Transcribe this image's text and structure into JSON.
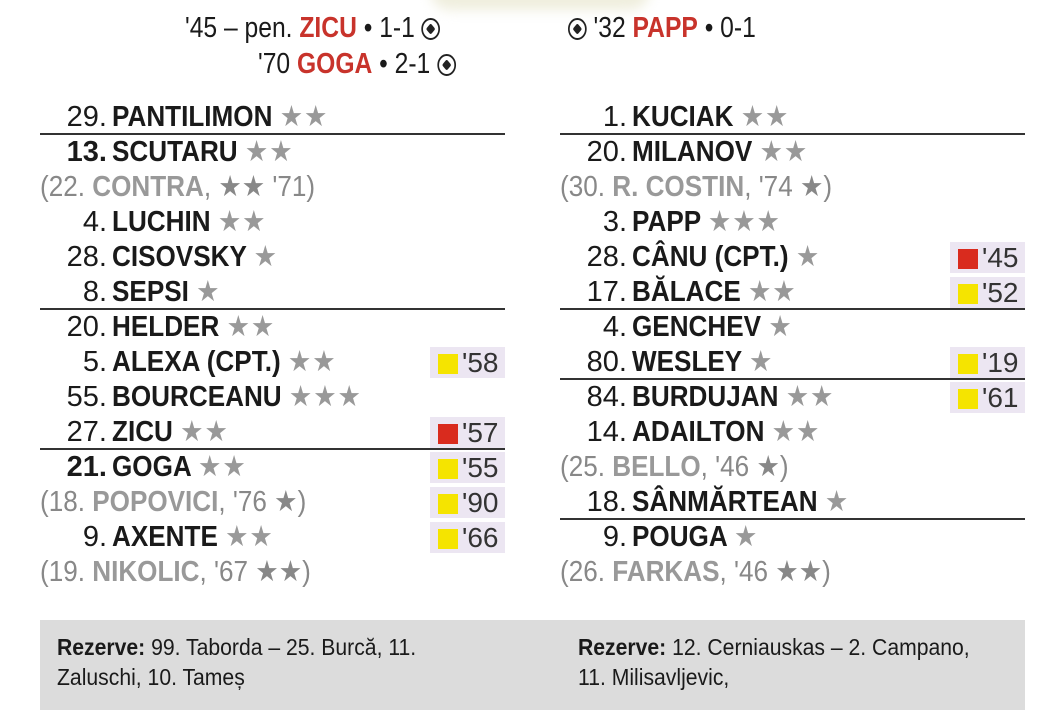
{
  "colors": {
    "scorer": "#c8332b",
    "yellow_card": "#f5e400",
    "red_card": "#d92b1e"
  },
  "goals": {
    "home": [
      {
        "minute": "'45 – pen.",
        "scorer": "ZICU",
        "score": "• 1-1"
      },
      {
        "minute": "'70",
        "scorer": "GOGA",
        "score": "• 2-1"
      }
    ],
    "away": [
      {
        "minute": "'32",
        "scorer": "PAPP",
        "score": "• 0-1"
      }
    ]
  },
  "home": {
    "players": [
      {
        "num": "29.",
        "name": "PANTILIMON",
        "stars": "★★",
        "line": true
      },
      {
        "num": "13.",
        "name": "SCUTARU",
        "stars": "★★",
        "bold_num": true
      },
      {
        "sub": true,
        "pre": "(22.",
        "name": "CONTRA",
        "post": ", ★★ '71)"
      },
      {
        "num": "4.",
        "name": "LUCHIN",
        "stars": "★★"
      },
      {
        "num": "28.",
        "name": "CISOVSKY",
        "stars": "★"
      },
      {
        "num": "8.",
        "name": "SEPSI",
        "stars": "★",
        "line": true
      },
      {
        "num": "20.",
        "name": "HELDER",
        "stars": "★★"
      },
      {
        "num": "5.",
        "name": "ALEXA (CPT.)",
        "stars": "★★",
        "card": "yellow",
        "card_min": "'58"
      },
      {
        "num": "55.",
        "name": "BOURCEANU",
        "stars": "★★★"
      },
      {
        "num": "27.",
        "name": "ZICU",
        "stars": "★★",
        "card": "red",
        "card_min": "'57",
        "line": true
      },
      {
        "num": "21.",
        "name": "GOGA",
        "stars": "★★",
        "bold_num": true,
        "card": "yellow",
        "card_min": "'55"
      },
      {
        "sub": true,
        "pre": "(18.",
        "name": "POPOVICI",
        "post": ", '76 ★)",
        "card": "yellow",
        "card_min": "'90"
      },
      {
        "num": "9.",
        "name": "AXENTE",
        "stars": "★★",
        "card": "yellow",
        "card_min": "'66"
      },
      {
        "sub": true,
        "pre": "(19.",
        "name": "NIKOLIC",
        "post": ", '67 ★★)"
      }
    ],
    "reserves_label": "Rezerve:",
    "reserves": "99. Taborda – 25. Burcă, 11. Zaluschi, 10. Tameș"
  },
  "away": {
    "players": [
      {
        "num": "1.",
        "name": "KUCIAK",
        "stars": "★★",
        "line": true
      },
      {
        "num": "20.",
        "name": "MILANOV",
        "stars": "★★"
      },
      {
        "sub": true,
        "pre": "(30.",
        "name": "R. COSTIN",
        "post": ", '74 ★)"
      },
      {
        "num": "3.",
        "name": "PAPP",
        "stars": "★★★"
      },
      {
        "num": "28.",
        "name": "CÂNU (CPT.)",
        "stars": "★",
        "card": "red",
        "card_min": "'45"
      },
      {
        "num": "17.",
        "name": "BĂLACE",
        "stars": "★★",
        "card": "yellow",
        "card_min": "'52",
        "line": true
      },
      {
        "num": "4.",
        "name": "GENCHEV",
        "stars": "★"
      },
      {
        "num": "80.",
        "name": "WESLEY",
        "stars": "★",
        "card": "yellow",
        "card_min": "'19",
        "line": true
      },
      {
        "num": "84.",
        "name": "BURDUJAN",
        "stars": "★★",
        "card": "yellow",
        "card_min": "'61"
      },
      {
        "num": "14.",
        "name": "ADAILTON",
        "stars": "★★"
      },
      {
        "sub": true,
        "pre": "(25.",
        "name": "BELLO",
        "post": ", '46 ★)"
      },
      {
        "num": "18.",
        "name": "SÂNMĂRTEAN",
        "stars": "★",
        "line": true
      },
      {
        "num": "9.",
        "name": "POUGA",
        "stars": "★"
      },
      {
        "sub": true,
        "pre": "(26.",
        "name": "FARKAS",
        "post": ", '46 ★★)"
      }
    ],
    "reserves_label": "Rezerve:",
    "reserves": "12. Cerniauskas – 2. Campano, 11. Milisavljevic,"
  }
}
